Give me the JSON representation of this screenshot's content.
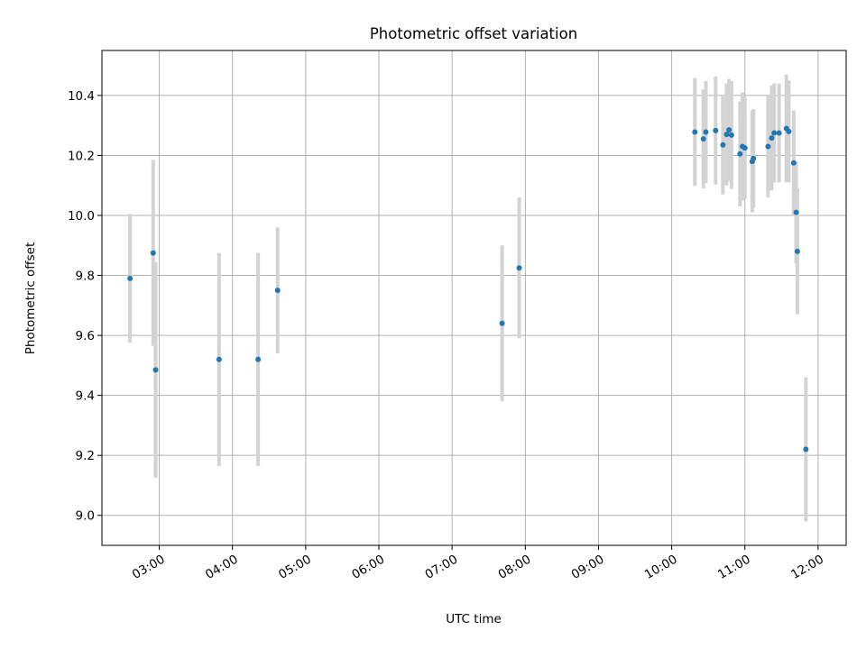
{
  "chart_data": {
    "type": "scatter",
    "title": "Photometric offset variation",
    "xlabel": "UTC time",
    "ylabel": "Photometric offset",
    "x_tick_labels": [
      "03:00",
      "04:00",
      "05:00",
      "06:00",
      "07:00",
      "08:00",
      "09:00",
      "10:00",
      "11:00",
      "12:00"
    ],
    "x_ticks": [
      "03:00",
      "04:00",
      "05:00",
      "06:00",
      "07:00",
      "08:00",
      "09:00",
      "10:00",
      "11:00",
      "12:00"
    ],
    "xlim": [
      "02:13",
      "12:23"
    ],
    "y_ticks": [
      9.0,
      9.2,
      9.4,
      9.6,
      9.8,
      10.0,
      10.2,
      10.4
    ],
    "y_tick_labels": [
      "9.0",
      "9.2",
      "9.4",
      "9.6",
      "9.8",
      "10.0",
      "10.2",
      "10.4"
    ],
    "ylim": [
      8.9,
      10.55
    ],
    "grid": true,
    "error_bar_color": "#d3d3d3",
    "point_color": "#1f77b4",
    "points": [
      {
        "t": "02:36",
        "y": 9.79,
        "err": 0.215
      },
      {
        "t": "02:55",
        "y": 9.875,
        "err": 0.31
      },
      {
        "t": "02:57",
        "y": 9.485,
        "err": 0.36
      },
      {
        "t": "03:49",
        "y": 9.52,
        "err": 0.355
      },
      {
        "t": "04:21",
        "y": 9.52,
        "err": 0.355
      },
      {
        "t": "04:37",
        "y": 9.75,
        "err": 0.21
      },
      {
        "t": "07:41",
        "y": 9.64,
        "err": 0.26
      },
      {
        "t": "07:55",
        "y": 9.825,
        "err": 0.235
      },
      {
        "t": "10:19",
        "y": 10.278,
        "err": 0.18
      },
      {
        "t": "10:26",
        "y": 10.255,
        "err": 0.165
      },
      {
        "t": "10:28",
        "y": 10.278,
        "err": 0.17
      },
      {
        "t": "10:36",
        "y": 10.283,
        "err": 0.18
      },
      {
        "t": "10:42",
        "y": 10.235,
        "err": 0.165
      },
      {
        "t": "10:45",
        "y": 10.27,
        "err": 0.17
      },
      {
        "t": "10:47",
        "y": 10.285,
        "err": 0.17
      },
      {
        "t": "10:49",
        "y": 10.268,
        "err": 0.18
      },
      {
        "t": "10:56",
        "y": 10.205,
        "err": 0.175
      },
      {
        "t": "10:58",
        "y": 10.23,
        "err": 0.18
      },
      {
        "t": "11:00",
        "y": 10.225,
        "err": 0.17
      },
      {
        "t": "11:06",
        "y": 10.18,
        "err": 0.17
      },
      {
        "t": "11:07",
        "y": 10.19,
        "err": 0.165
      },
      {
        "t": "11:19",
        "y": 10.23,
        "err": 0.17
      },
      {
        "t": "11:22",
        "y": 10.258,
        "err": 0.175
      },
      {
        "t": "11:24",
        "y": 10.275,
        "err": 0.165
      },
      {
        "t": "11:28",
        "y": 10.275,
        "err": 0.165
      },
      {
        "t": "11:34",
        "y": 10.29,
        "err": 0.18
      },
      {
        "t": "11:36",
        "y": 10.28,
        "err": 0.17
      },
      {
        "t": "11:40",
        "y": 10.175,
        "err": 0.175
      },
      {
        "t": "11:42",
        "y": 10.01,
        "err": 0.17
      },
      {
        "t": "11:43",
        "y": 9.88,
        "err": 0.21
      },
      {
        "t": "11:50",
        "y": 9.22,
        "err": 0.24
      }
    ]
  }
}
